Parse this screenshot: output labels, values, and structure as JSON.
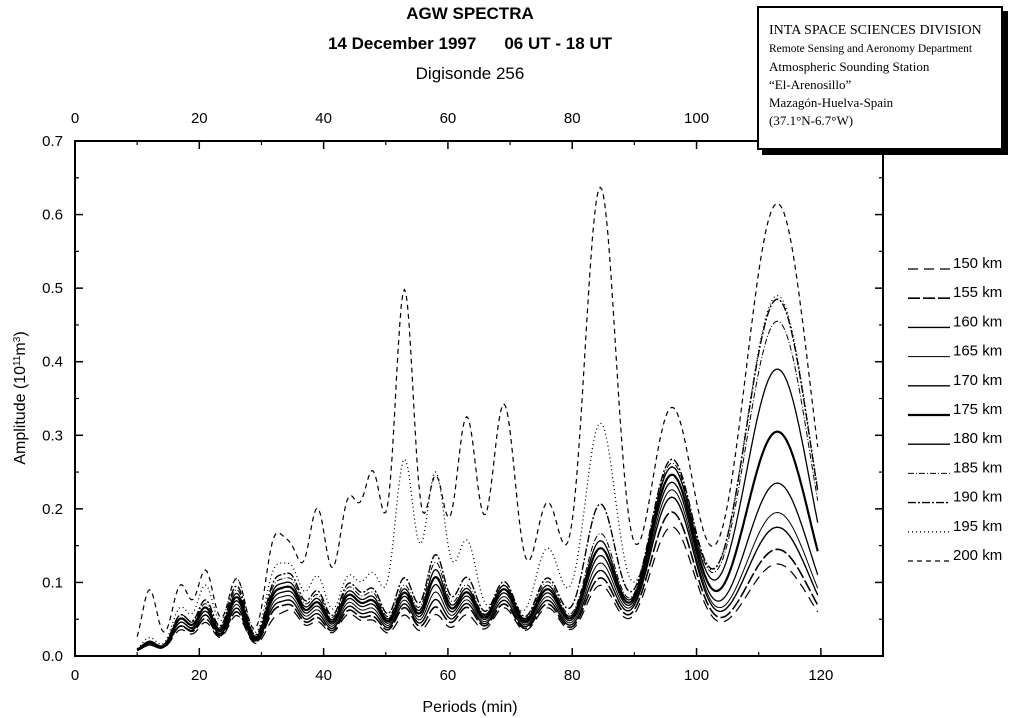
{
  "header": {
    "title": "AGW SPECTRA",
    "date": "14 December 1997",
    "time_range": "06 UT - 18 UT",
    "instrument": "Digisonde 256"
  },
  "infobox": {
    "line1": "INTA SPACE SCIENCES DIVISION",
    "line2": "Remote Sensing and Aeronomy Department",
    "line3": "Atmospheric Sounding Station",
    "line4": "“El-Arenosillo”",
    "line5": "Mazagón-Huelva-Spain",
    "line6": "(37.1°N-6.7°W)"
  },
  "chart_data": {
    "type": "line",
    "xlabel": "Periods (min)",
    "ylabel_main": "Amplitude (10",
    "ylabel_sup1": "11",
    "ylabel_mid": "m",
    "ylabel_sup2": "3",
    "ylabel_end": ")",
    "xlim": [
      0,
      130
    ],
    "ylim": [
      0,
      0.7
    ],
    "x_ticks": [
      "0",
      "20",
      "40",
      "60",
      "80",
      "100",
      "120"
    ],
    "top_ticks": [
      "0",
      "20",
      "40",
      "60",
      "80",
      "100"
    ],
    "y_ticks": [
      "0.0",
      "0.1",
      "0.2",
      "0.3",
      "0.4",
      "0.5",
      "0.6",
      "0.7"
    ],
    "legend_position": "right",
    "peaks": [
      {
        "x": 12,
        "w": 1.2
      },
      {
        "x": 17,
        "w": 1.4
      },
      {
        "x": 21,
        "w": 1.4
      },
      {
        "x": 26,
        "w": 1.5
      },
      {
        "x": 32,
        "w": 1.5
      },
      {
        "x": 35,
        "w": 1.5
      },
      {
        "x": 39,
        "w": 1.5
      },
      {
        "x": 44,
        "w": 1.7
      },
      {
        "x": 48,
        "w": 1.6
      },
      {
        "x": 53,
        "w": 1.6
      },
      {
        "x": 58,
        "w": 1.6
      },
      {
        "x": 63,
        "w": 1.8
      },
      {
        "x": 69,
        "w": 2.0
      },
      {
        "x": 76,
        "w": 2.2
      },
      {
        "x": 84.5,
        "w": 2.6
      },
      {
        "x": 96,
        "w": 3.6
      },
      {
        "x": 113,
        "w": 5.2
      }
    ],
    "series": [
      {
        "name": "150 km",
        "dash": "10 6",
        "width": 1.2,
        "amps": [
          0.01,
          0.03,
          0.04,
          0.05,
          0.04,
          0.05,
          0.04,
          0.05,
          0.04,
          0.05,
          0.05,
          0.05,
          0.06,
          0.06,
          0.09,
          0.17,
          0.12
        ]
      },
      {
        "name": "155 km",
        "dash": "12 3",
        "width": 1.6,
        "amps": [
          0.01,
          0.035,
          0.045,
          0.055,
          0.05,
          0.055,
          0.045,
          0.055,
          0.045,
          0.06,
          0.06,
          0.06,
          0.065,
          0.065,
          0.1,
          0.19,
          0.14
        ]
      },
      {
        "name": "160 km",
        "dash": "none",
        "width": 1.4,
        "amps": [
          0.01,
          0.035,
          0.05,
          0.06,
          0.055,
          0.06,
          0.05,
          0.06,
          0.05,
          0.065,
          0.07,
          0.065,
          0.07,
          0.07,
          0.11,
          0.21,
          0.17
        ]
      },
      {
        "name": "165 km",
        "dash": "none",
        "width": 1.0,
        "amps": [
          0.012,
          0.04,
          0.05,
          0.065,
          0.06,
          0.065,
          0.055,
          0.065,
          0.055,
          0.07,
          0.08,
          0.07,
          0.075,
          0.075,
          0.12,
          0.22,
          0.19
        ]
      },
      {
        "name": "170 km",
        "dash": "none",
        "width": 1.3,
        "amps": [
          0.012,
          0.04,
          0.055,
          0.07,
          0.065,
          0.07,
          0.06,
          0.07,
          0.06,
          0.075,
          0.09,
          0.075,
          0.08,
          0.08,
          0.13,
          0.23,
          0.23
        ]
      },
      {
        "name": "175 km",
        "dash": "none",
        "width": 2.2,
        "amps": [
          0.014,
          0.045,
          0.06,
          0.075,
          0.07,
          0.075,
          0.065,
          0.075,
          0.065,
          0.08,
          0.1,
          0.08,
          0.085,
          0.085,
          0.14,
          0.24,
          0.3
        ]
      },
      {
        "name": "180 km",
        "dash": "none",
        "width": 1.3,
        "amps": [
          0.014,
          0.045,
          0.06,
          0.08,
          0.075,
          0.08,
          0.07,
          0.08,
          0.07,
          0.085,
          0.11,
          0.085,
          0.09,
          0.09,
          0.15,
          0.25,
          0.385
        ]
      },
      {
        "name": "185 km",
        "dash": "6 2 1 2",
        "width": 1.0,
        "amps": [
          0.015,
          0.05,
          0.065,
          0.085,
          0.08,
          0.085,
          0.075,
          0.085,
          0.075,
          0.09,
          0.12,
          0.09,
          0.09,
          0.095,
          0.16,
          0.255,
          0.45
        ]
      },
      {
        "name": "190 km",
        "dash": "8 2 2 2",
        "width": 1.4,
        "amps": [
          0.015,
          0.05,
          0.07,
          0.09,
          0.085,
          0.09,
          0.08,
          0.09,
          0.08,
          0.1,
          0.13,
          0.1,
          0.095,
          0.1,
          0.2,
          0.26,
          0.48
        ]
      },
      {
        "name": "195 km",
        "dash": "1 3",
        "width": 1.3,
        "amps": [
          0.02,
          0.06,
          0.09,
          0.1,
          0.1,
          0.1,
          0.1,
          0.1,
          0.1,
          0.26,
          0.24,
          0.15,
          0.09,
          0.14,
          0.31,
          0.25,
          0.485
        ]
      },
      {
        "name": "200 km",
        "dash": "5 4",
        "width": 1.2,
        "amps": [
          0.085,
          0.09,
          0.11,
          0.1,
          0.14,
          0.12,
          0.19,
          0.2,
          0.23,
          0.49,
          0.23,
          0.315,
          0.335,
          0.2,
          0.63,
          0.33,
          0.61
        ]
      }
    ]
  }
}
